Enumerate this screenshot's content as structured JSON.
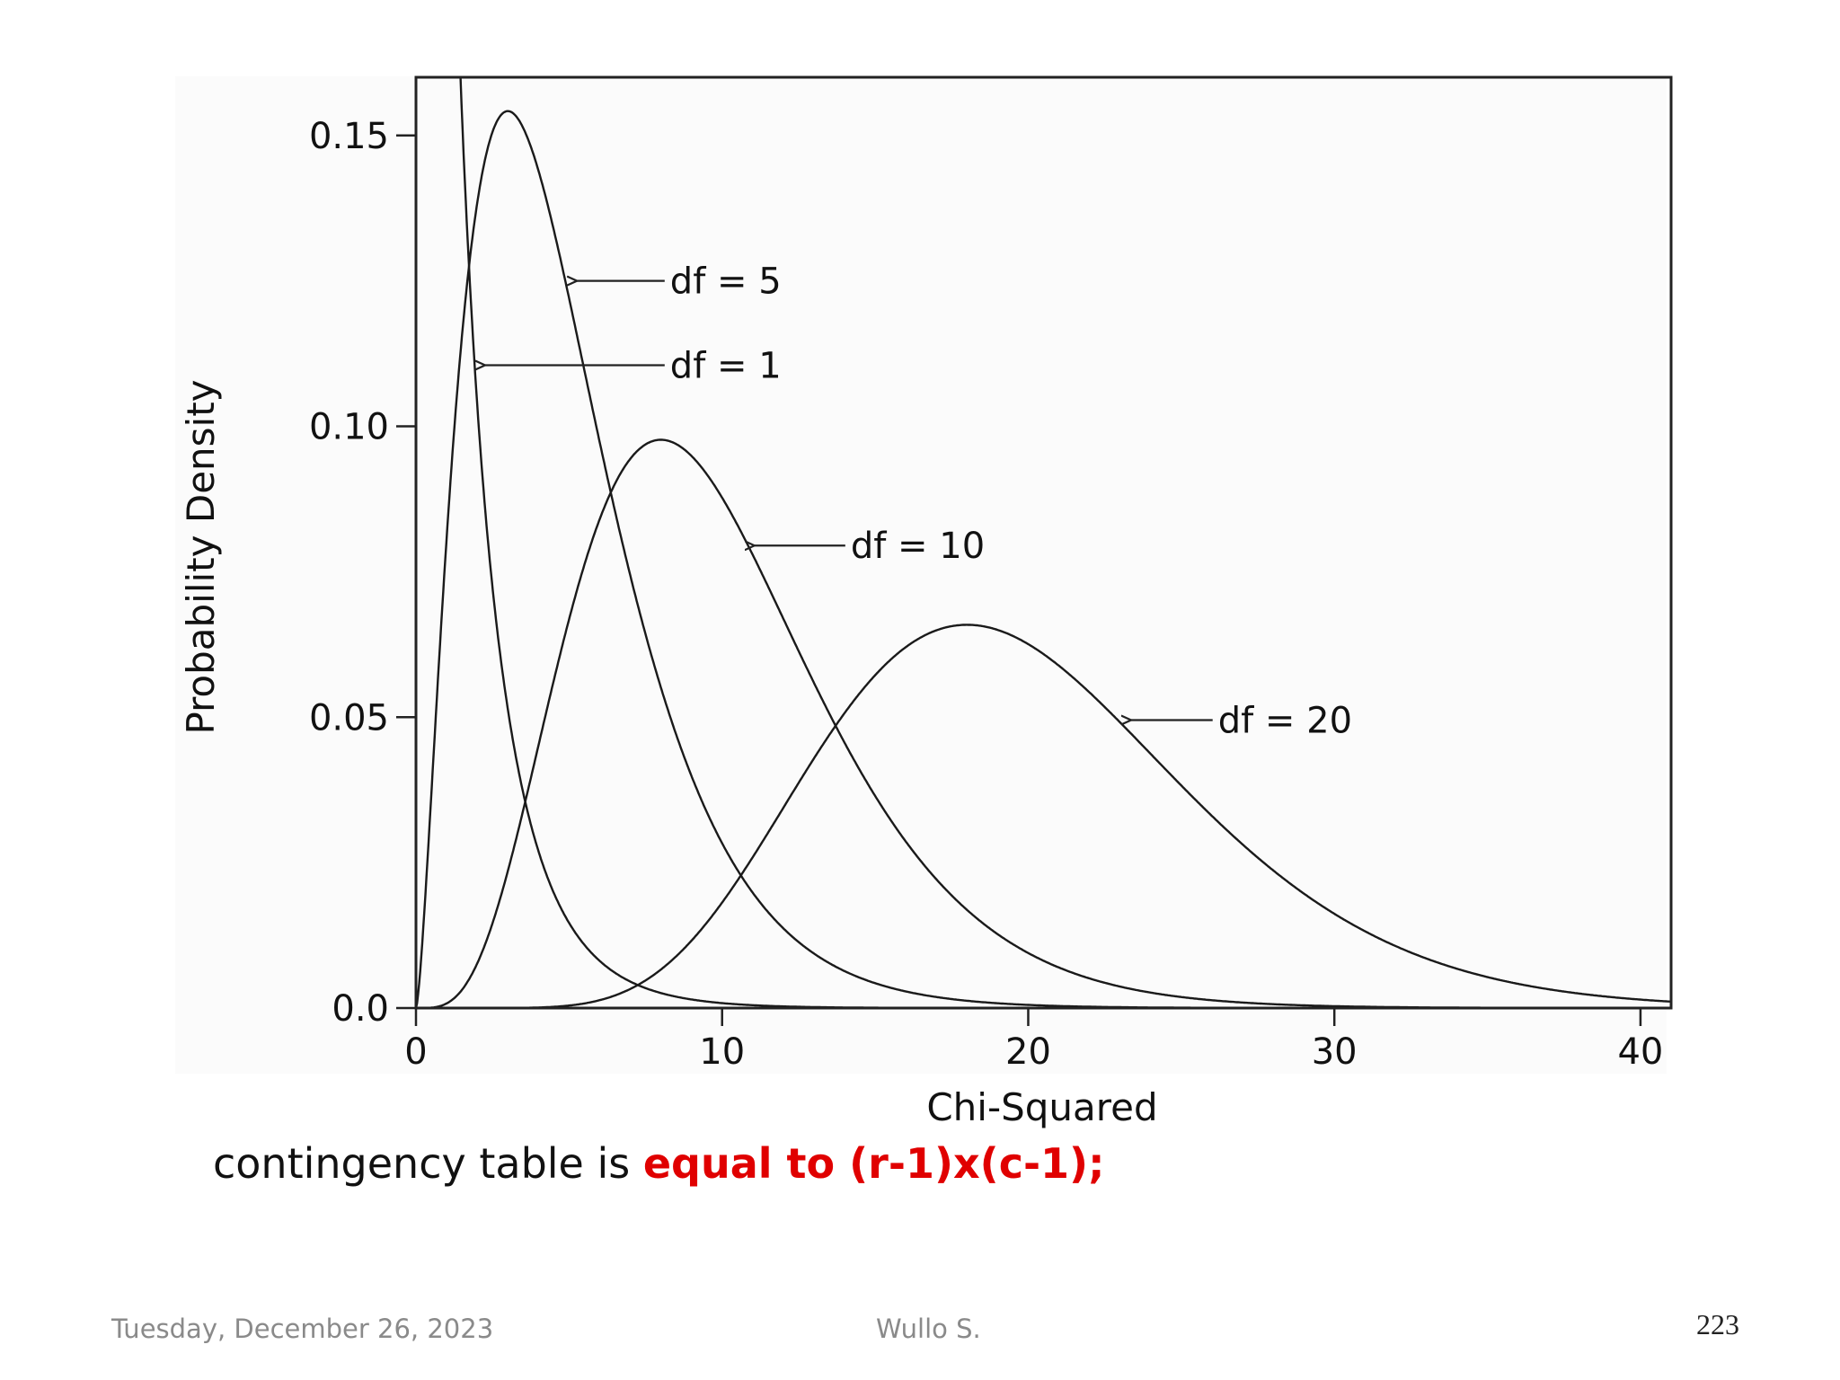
{
  "chart_data": {
    "type": "line",
    "title": "",
    "xlabel": "Chi-Squared",
    "ylabel": "Probability Density",
    "xlim": [
      0,
      41
    ],
    "ylim": [
      0,
      0.16
    ],
    "x_ticks": [
      0,
      10,
      20,
      30,
      40
    ],
    "x_tick_labels": [
      "0",
      "10",
      "20",
      "30",
      "40"
    ],
    "y_ticks": [
      0,
      0.05,
      0.1,
      0.15
    ],
    "y_tick_labels": [
      "0.0",
      "0.05",
      "0.10",
      "0.15"
    ],
    "grid": false,
    "series": [
      {
        "name": "df = 1",
        "df": 1,
        "peak_x": 0,
        "peak_y": 0.16
      },
      {
        "name": "df = 5",
        "df": 5,
        "peak_x": 3,
        "peak_y": 0.154
      },
      {
        "name": "df = 10",
        "df": 10,
        "peak_x": 8,
        "peak_y": 0.098
      },
      {
        "name": "df = 20",
        "df": 20,
        "peak_x": 18,
        "peak_y": 0.066
      }
    ],
    "annotations": [
      {
        "text": "df = 5",
        "series": "df = 5",
        "arrow_to_x": 5.2,
        "arrow_to_y": 0.125,
        "label_x": 8.3,
        "label_y": 0.125
      },
      {
        "text": "df = 1",
        "series": "df = 1",
        "arrow_to_x": 2.2,
        "arrow_to_y": 0.1105,
        "label_x": 8.3,
        "label_y": 0.1105
      },
      {
        "text": "df = 10",
        "series": "df = 10",
        "arrow_to_x": 11,
        "arrow_to_y": 0.0795,
        "label_x": 14.2,
        "label_y": 0.0795
      },
      {
        "text": "df = 20",
        "series": "df = 20",
        "arrow_to_x": 23.3,
        "arrow_to_y": 0.0495,
        "label_x": 26.2,
        "label_y": 0.0495
      }
    ]
  },
  "caption": {
    "prefix": "contingency table is ",
    "emphasis": "equal to (r-1)x(c-1);",
    "emphasis_color": "#e00000"
  },
  "footer": {
    "date": "Tuesday, December 26, 2023",
    "author": "Wullo S.",
    "page_number": "223"
  }
}
